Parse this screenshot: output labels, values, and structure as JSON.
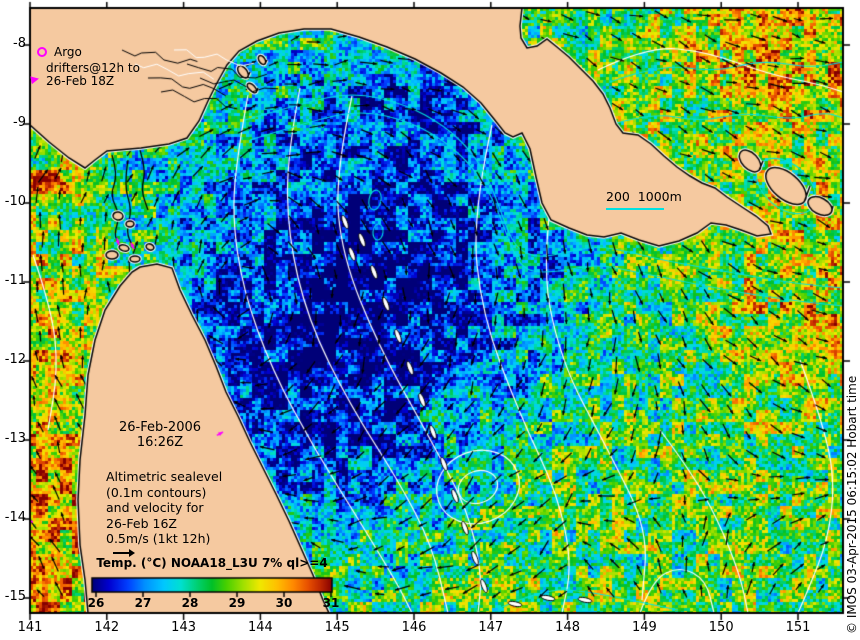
{
  "legend": {
    "argo": "Argo",
    "drifters_line1": "drifters@12h to",
    "drifters_line2": "26-Feb 18Z"
  },
  "depth_legend": {
    "label": "200  1000m"
  },
  "datetime": {
    "date": "26-Feb-2006",
    "time": "16:26Z"
  },
  "annotation": {
    "lines": [
      "Altimetric sealevel",
      "(0.1m contours)",
      "and velocity for",
      "26-Feb 16Z",
      "0.5m/s (1kt 12h)"
    ]
  },
  "colorbar": {
    "title": "Temp. (°C) NOAA18_L3U 7% ql>=4",
    "ticks": [
      "26",
      "27",
      "28",
      "29",
      "30",
      "31"
    ]
  },
  "axes": {
    "x_ticks": [
      "141",
      "142",
      "143",
      "144",
      "145",
      "146",
      "147",
      "148",
      "149",
      "150",
      "151"
    ],
    "y_ticks": [
      "-8",
      "-9",
      "-10",
      "-11",
      "-12",
      "-13",
      "-14",
      "-15"
    ]
  },
  "credit": "© IMOS 03-Apr-2015 06:15:02 Hobart time",
  "colors": {
    "land": "#F5C9A0",
    "coast": "#000000",
    "coast_fringe": "#FFFFFF",
    "sealevel_contour": "#FFFFFF",
    "isobath": "#00E1E1",
    "vector": "#000000",
    "marker_magenta": "#FF00FF",
    "frame": "#000000",
    "background": "#FFFFFF",
    "sst_stops": [
      [
        0,
        "#000078"
      ],
      [
        0.07,
        "#0000D0"
      ],
      [
        0.15,
        "#0040FF"
      ],
      [
        0.22,
        "#0090FF"
      ],
      [
        0.3,
        "#00C8FF"
      ],
      [
        0.37,
        "#00E0D0"
      ],
      [
        0.44,
        "#00D070"
      ],
      [
        0.5,
        "#00C028"
      ],
      [
        0.56,
        "#48D000"
      ],
      [
        0.63,
        "#A0E000"
      ],
      [
        0.7,
        "#F0E800"
      ],
      [
        0.77,
        "#FFC000"
      ],
      [
        0.84,
        "#FF8800"
      ],
      [
        0.9,
        "#E85000"
      ],
      [
        0.95,
        "#C02800"
      ],
      [
        1,
        "#860000"
      ]
    ]
  },
  "markers": {
    "drifters": [
      {
        "x": 33,
        "y": 522,
        "angle": 0.3
      },
      {
        "x": 223,
        "y": 432,
        "angle": -0.5
      },
      {
        "x": 119,
        "y": 245,
        "angle": 1.25
      },
      {
        "x": 134,
        "y": 249,
        "angle": 1.1
      }
    ]
  },
  "chart_data": {
    "type": "heatmap",
    "x_axis_ticks": [
      141,
      142,
      143,
      144,
      145,
      146,
      147,
      148,
      149,
      150,
      151
    ],
    "y_axis_ticks": [
      -8,
      -9,
      -10,
      -11,
      -12,
      -13,
      -14,
      -15
    ],
    "colorbar": {
      "title": "Temp. (°C) NOAA18_L3U 7% ql>=4",
      "tick_values": [
        26,
        27,
        28,
        29,
        30,
        31
      ]
    },
    "overlays": [
      "altimetric sealevel 0.1m contours",
      "velocity vectors 0.5m/s scale",
      "200m and 1000m isobaths",
      "Argo positions",
      "drifter tracks"
    ]
  }
}
